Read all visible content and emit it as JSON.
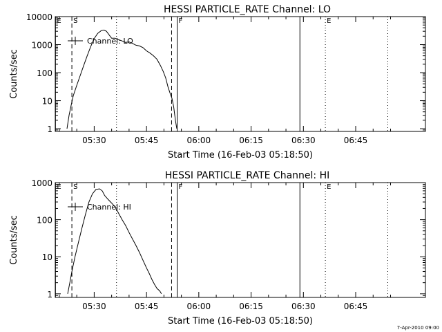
{
  "footer": {
    "timestamp": "7-Apr-2010 09:00"
  },
  "colors": {
    "background": "#ffffff",
    "foreground": "#000000"
  },
  "chart_data": [
    {
      "type": "line",
      "title": "HESSI PARTICLE_RATE Channel: LO",
      "xlabel": "Start Time (16-Feb-03 05:18:50)",
      "ylabel": "Counts/sec",
      "yscale": "log",
      "ylim": [
        0.8,
        10000
      ],
      "xlim": [
        318.83,
        425
      ],
      "x_unit": "minutes after 00:00 UT on 16-Feb-03",
      "x_ticks": [
        330,
        345,
        360,
        375,
        390,
        405
      ],
      "x_tick_labels": [
        "05:30",
        "05:45",
        "06:00",
        "06:15",
        "06:30",
        "06:45"
      ],
      "y_ticks": [
        1,
        10,
        100,
        1000,
        10000
      ],
      "y_tick_labels": [
        "1",
        "10",
        "100",
        "1000",
        "10000"
      ],
      "grid": false,
      "legend": {
        "position": "top-left",
        "entries": [
          "Channel: LO"
        ]
      },
      "markers": [
        {
          "label": "E",
          "x": 318.9,
          "style": "solid"
        },
        {
          "label": "S",
          "x": 323.6,
          "style": "dashed"
        },
        {
          "label": "",
          "x": 336.4,
          "style": "dotted"
        },
        {
          "label": "",
          "x": 352.2,
          "style": "dashed"
        },
        {
          "label": "F",
          "x": 353.8,
          "style": "solid"
        },
        {
          "label": "",
          "x": 389.0,
          "style": "solid"
        },
        {
          "label": "E",
          "x": 396.3,
          "style": "dotted"
        },
        {
          "label": "",
          "x": 414.2,
          "style": "dotted"
        }
      ],
      "series": [
        {
          "name": "Channel: LO",
          "x": [
            322.2,
            322.8,
            323.4,
            324.0,
            325.0,
            326.0,
            327.0,
            328.0,
            329.0,
            330.0,
            331.0,
            332.0,
            332.8,
            333.5,
            334.3,
            335.0,
            336.0,
            337.0,
            338.0,
            339.0,
            340.0,
            341.0,
            342.0,
            343.0,
            344.0,
            345.0,
            346.0,
            347.0,
            348.0,
            349.0,
            349.8,
            350.5,
            351.2,
            351.8,
            352.3,
            352.8,
            353.3,
            353.7
          ],
          "y": [
            1,
            3,
            7,
            15,
            35,
            80,
            180,
            400,
            850,
            1650,
            2500,
            3150,
            3300,
            3000,
            2200,
            1700,
            1700,
            1500,
            1350,
            1200,
            1250,
            1100,
            950,
            900,
            780,
            600,
            500,
            400,
            300,
            180,
            110,
            65,
            30,
            18,
            12,
            6,
            2,
            1
          ]
        }
      ]
    },
    {
      "type": "line",
      "title": "HESSI PARTICLE_RATE Channel: HI",
      "xlabel": "Start Time (16-Feb-03 05:18:50)",
      "ylabel": "Counts/sec",
      "yscale": "log",
      "ylim": [
        0.8,
        1000
      ],
      "xlim": [
        318.83,
        425
      ],
      "x_unit": "minutes after 00:00 UT on 16-Feb-03",
      "x_ticks": [
        330,
        345,
        360,
        375,
        390,
        405
      ],
      "x_tick_labels": [
        "05:30",
        "05:45",
        "06:00",
        "06:15",
        "06:30",
        "06:45"
      ],
      "y_ticks": [
        1,
        10,
        100,
        1000
      ],
      "y_tick_labels": [
        "1",
        "10",
        "100",
        "1000"
      ],
      "grid": false,
      "legend": {
        "position": "top-left",
        "entries": [
          "Channel: HI"
        ]
      },
      "markers": [
        {
          "label": "E",
          "x": 318.9,
          "style": "solid"
        },
        {
          "label": "S",
          "x": 323.6,
          "style": "dashed"
        },
        {
          "label": "",
          "x": 336.4,
          "style": "dotted"
        },
        {
          "label": "",
          "x": 352.2,
          "style": "dashed"
        },
        {
          "label": "F",
          "x": 353.8,
          "style": "solid"
        },
        {
          "label": "",
          "x": 389.0,
          "style": "solid"
        },
        {
          "label": "E",
          "x": 396.3,
          "style": "dotted"
        },
        {
          "label": "",
          "x": 414.2,
          "style": "dotted"
        }
      ],
      "series": [
        {
          "name": "Channel: HI",
          "x": [
            322.4,
            323.0,
            323.6,
            324.5,
            325.5,
            326.5,
            327.5,
            328.5,
            329.5,
            330.5,
            331.5,
            332.3,
            333.0,
            334.0,
            335.0,
            336.0,
            337.0,
            338.0,
            339.0,
            340.0,
            341.0,
            342.0,
            343.0,
            344.0,
            345.0,
            345.8,
            346.5,
            347.3,
            348.0,
            348.8,
            349.3
          ],
          "y": [
            1,
            2,
            4,
            10,
            25,
            60,
            140,
            300,
            500,
            650,
            680,
            600,
            450,
            350,
            280,
            220,
            150,
            100,
            70,
            45,
            30,
            20,
            13,
            8,
            5,
            3.5,
            2.5,
            1.8,
            1.4,
            1.2,
            1
          ]
        }
      ]
    }
  ]
}
